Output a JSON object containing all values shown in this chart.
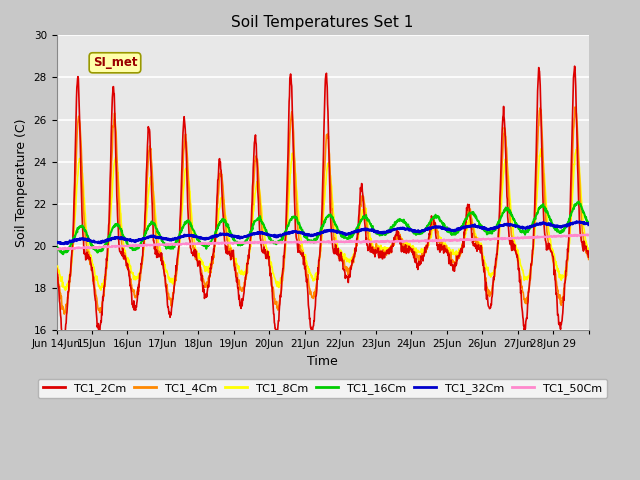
{
  "title": "Soil Temperatures Set 1",
  "xlabel": "Time",
  "ylabel": "Soil Temperature (C)",
  "ylim": [
    16,
    30
  ],
  "yticks": [
    16,
    18,
    20,
    22,
    24,
    26,
    28,
    30
  ],
  "annotation_text": "SI_met",
  "series": {
    "TC1_2Cm": {
      "color": "#dd0000",
      "lw": 1.2
    },
    "TC1_4Cm": {
      "color": "#ff8800",
      "lw": 1.2
    },
    "TC1_8Cm": {
      "color": "#ffff00",
      "lw": 1.2
    },
    "TC1_16Cm": {
      "color": "#00cc00",
      "lw": 1.5
    },
    "TC1_32Cm": {
      "color": "#0000cc",
      "lw": 1.8
    },
    "TC1_50Cm": {
      "color": "#ff88cc",
      "lw": 1.5
    }
  },
  "num_days": 15,
  "points_per_day": 96,
  "fig_facecolor": "#c8c8c8",
  "ax_facecolor": "#e8e8e8",
  "grid_color": "white"
}
